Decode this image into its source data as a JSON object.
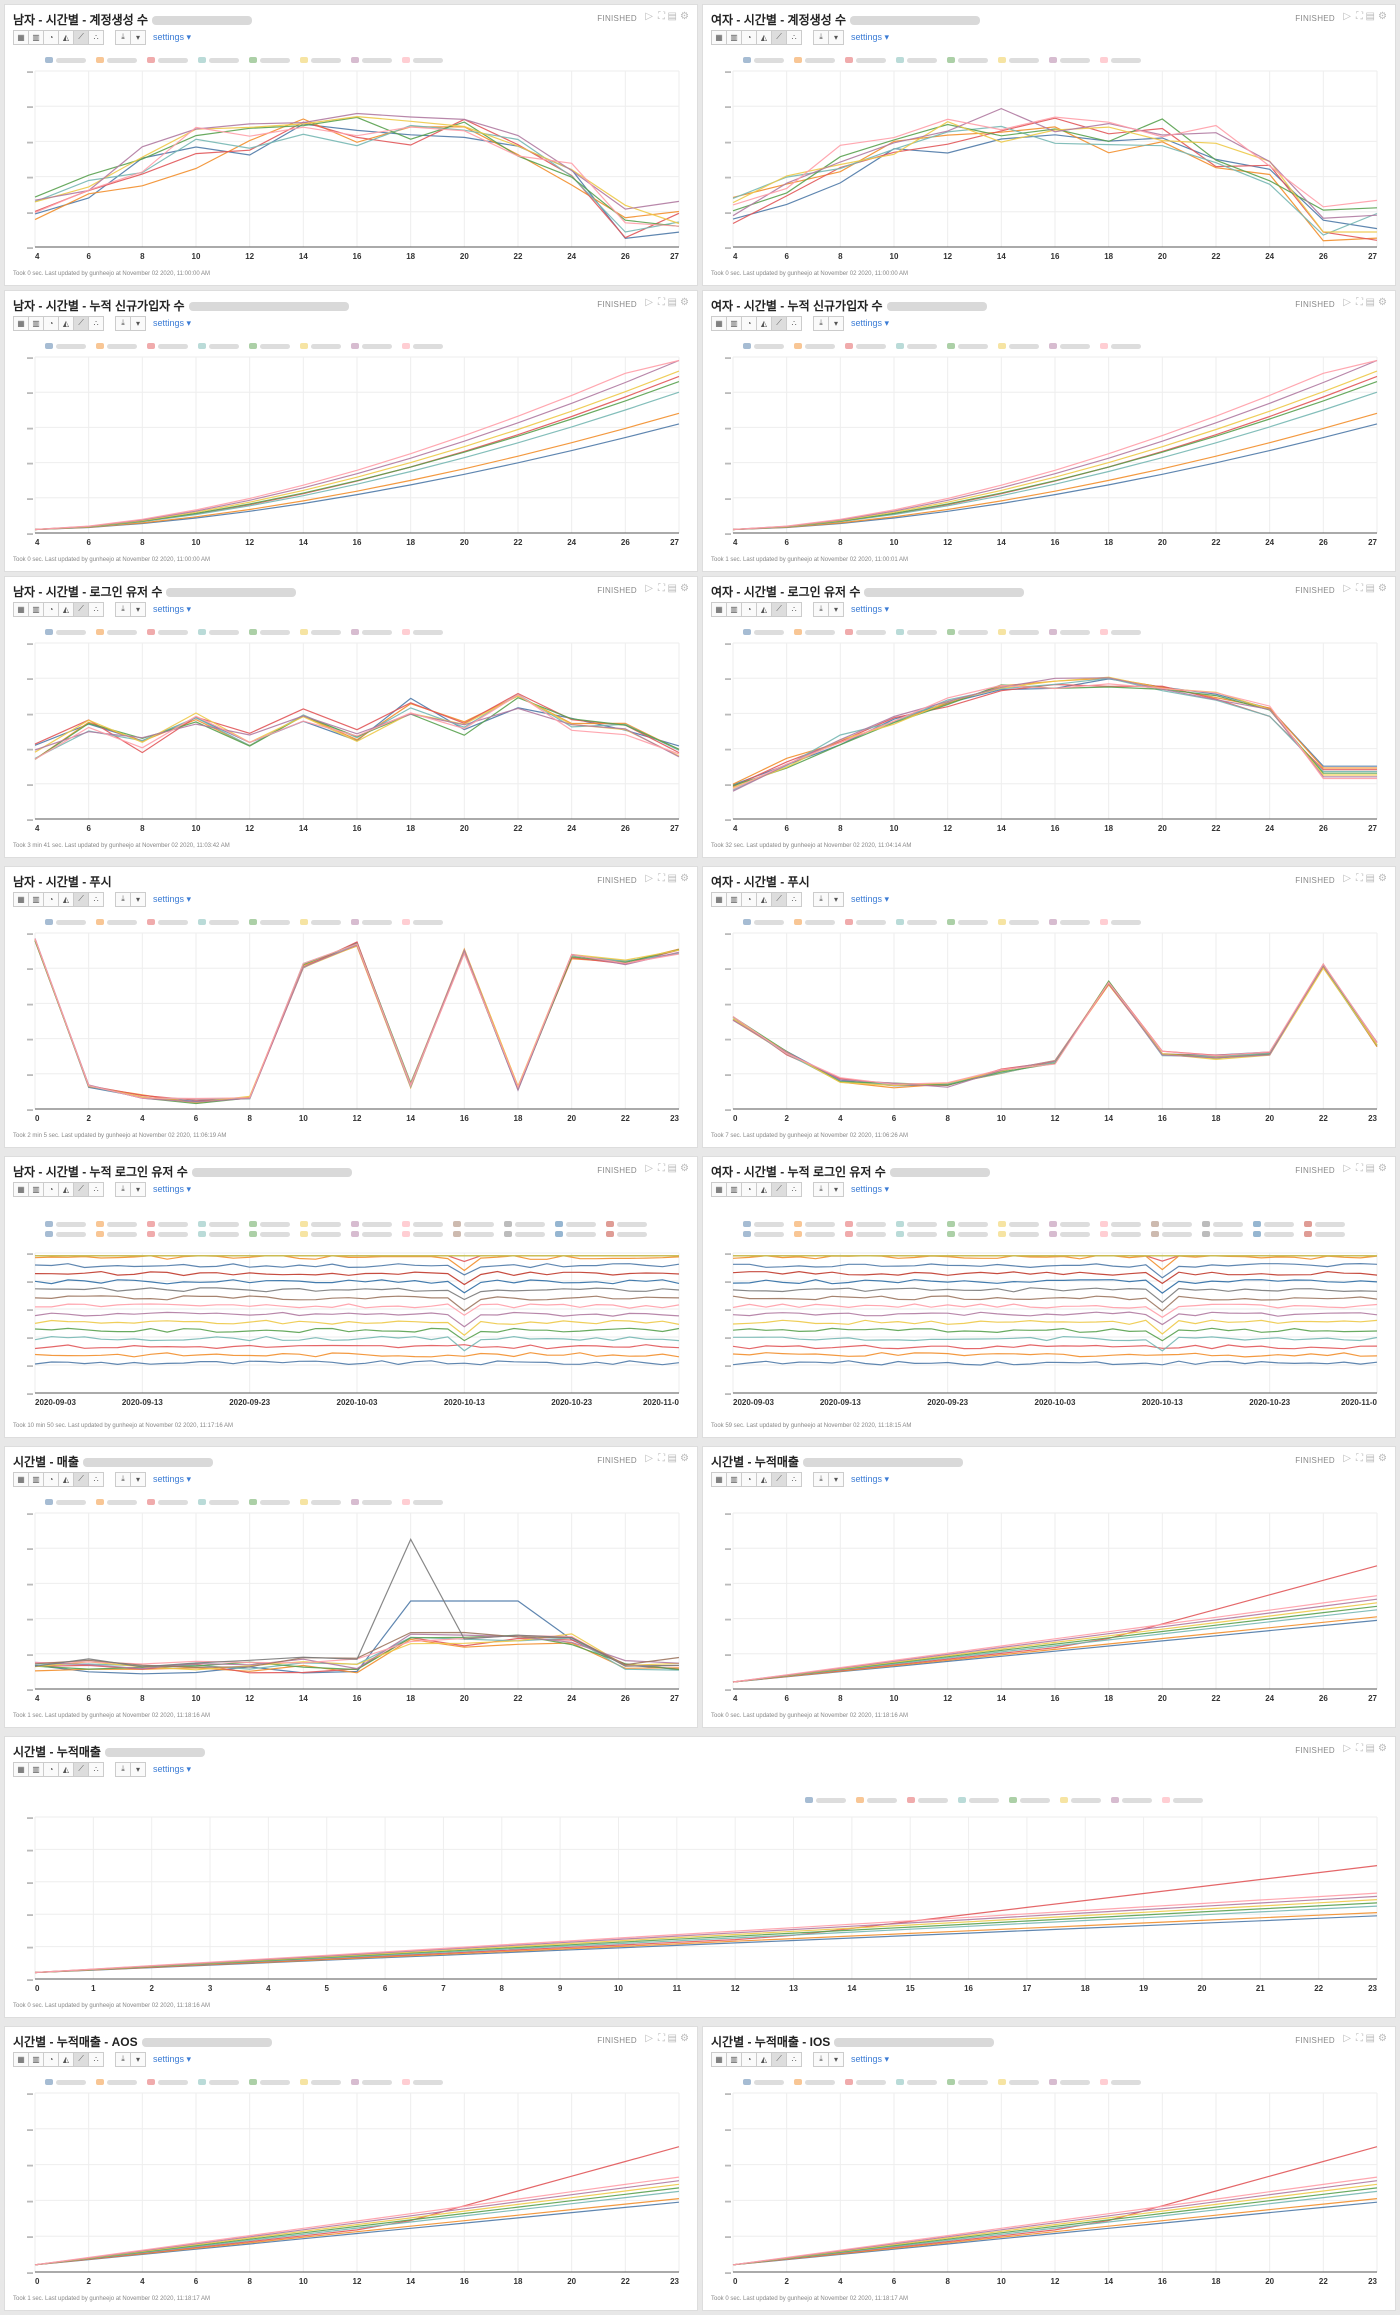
{
  "colors": [
    "#4e79a7",
    "#f28e2b",
    "#e15759",
    "#76b7b2",
    "#59a14f",
    "#edc948",
    "#b07aa1",
    "#ff9da7",
    "#9c755f",
    "#7a7a7a",
    "#2e6da4",
    "#c0392b"
  ],
  "paragraphs": [
    {
      "title": "남자 - 시간별 - 계정생성 수",
      "status": "FINISHED",
      "footer": "Took 0 sec. Last updated by gunheejo at November 02 2020, 11:00:00 AM",
      "settings": "settings",
      "chart_data": {
        "type": "line",
        "x": [
          4,
          6,
          8,
          10,
          12,
          14,
          16,
          18,
          20,
          22,
          24,
          26,
          27
        ],
        "xticks": [
          "4",
          "6",
          "8",
          "10",
          "12",
          "14",
          "16",
          "18",
          "20",
          "22",
          "24",
          "26",
          "27"
        ],
        "ylim": [
          0,
          100
        ],
        "pattern": "gen",
        "seed": 1
      }
    },
    {
      "title": "여자 - 시간별 - 계정생성 수",
      "status": "FINISHED",
      "footer": "Took 0 sec. Last updated by gunheejo at November 02 2020, 11:00:00 AM",
      "settings": "settings",
      "chart_data": {
        "type": "line",
        "x": [
          4,
          6,
          8,
          10,
          12,
          14,
          16,
          18,
          20,
          22,
          24,
          26,
          27
        ],
        "xticks": [
          "4",
          "6",
          "8",
          "10",
          "12",
          "14",
          "16",
          "18",
          "20",
          "22",
          "24",
          "26",
          "27"
        ],
        "ylim": [
          0,
          100
        ],
        "pattern": "gen",
        "seed": 2
      }
    },
    {
      "title": "남자 - 시간별 - 누적 신규가입자 수",
      "status": "FINISHED",
      "footer": "Took 0 sec. Last updated by gunheejo at November 02 2020, 11:00:00 AM",
      "settings": "settings",
      "chart_data": {
        "type": "line",
        "x": [
          4,
          6,
          8,
          10,
          12,
          14,
          16,
          18,
          20,
          22,
          24,
          26,
          27
        ],
        "xticks": [
          "4",
          "6",
          "8",
          "10",
          "12",
          "14",
          "16",
          "18",
          "20",
          "22",
          "24",
          "26",
          "27"
        ],
        "ylim": [
          0,
          100
        ],
        "pattern": "cum",
        "seed": 3
      }
    },
    {
      "title": "여자 - 시간별 - 누적 신규가입자 수",
      "status": "FINISHED",
      "footer": "Took 1 sec. Last updated by gunheejo at November 02 2020, 11:00:01 AM",
      "settings": "settings",
      "chart_data": {
        "type": "line",
        "x": [
          4,
          6,
          8,
          10,
          12,
          14,
          16,
          18,
          20,
          22,
          24,
          26,
          27
        ],
        "xticks": [
          "4",
          "6",
          "8",
          "10",
          "12",
          "14",
          "16",
          "18",
          "20",
          "22",
          "24",
          "26",
          "27"
        ],
        "ylim": [
          0,
          100
        ],
        "pattern": "cum",
        "seed": 4
      }
    },
    {
      "title": "남자 - 시간별 - 로그인 유저 수",
      "status": "FINISHED",
      "footer": "Took 3 min 41 sec. Last updated by gunheejo at November 02 2020, 11:03:42 AM",
      "settings": "settings",
      "chart_data": {
        "type": "line",
        "x": [
          4,
          6,
          8,
          10,
          12,
          14,
          16,
          18,
          20,
          22,
          24,
          26,
          27
        ],
        "xticks": [
          "4",
          "6",
          "8",
          "10",
          "12",
          "14",
          "16",
          "18",
          "20",
          "22",
          "24",
          "26",
          "27"
        ],
        "ylim": [
          0,
          100
        ],
        "pattern": "zig",
        "seed": 5
      }
    },
    {
      "title": "여자 - 시간별 - 로그인 유저 수",
      "status": "FINISHED",
      "footer": "Took 32 sec. Last updated by gunheejo at November 02 2020, 11:04:14 AM",
      "settings": "settings",
      "chart_data": {
        "type": "line",
        "x": [
          4,
          6,
          8,
          10,
          12,
          14,
          16,
          18,
          20,
          22,
          24,
          26,
          27
        ],
        "xticks": [
          "4",
          "6",
          "8",
          "10",
          "12",
          "14",
          "16",
          "18",
          "20",
          "22",
          "24",
          "26",
          "27"
        ],
        "ylim": [
          0,
          100
        ],
        "pattern": "hump",
        "seed": 6
      }
    },
    {
      "title": "남자 - 시간별 - 푸시",
      "status": "FINISHED",
      "footer": "Took 2 min 5 sec. Last updated by gunheejo at November 02 2020, 11:06:19 AM",
      "settings": "settings",
      "chart_data": {
        "type": "line",
        "x": [
          0,
          2,
          4,
          6,
          8,
          10,
          12,
          14,
          16,
          18,
          20,
          22,
          23
        ],
        "xticks": [
          "0",
          "2",
          "4",
          "6",
          "8",
          "10",
          "12",
          "14",
          "16",
          "18",
          "20",
          "22",
          "23"
        ],
        "ylim": [
          0,
          100
        ],
        "pattern": "push",
        "seed": 7
      }
    },
    {
      "title": "여자 - 시간별 - 푸시",
      "status": "FINISHED",
      "footer": "Took 7 sec. Last updated by gunheejo at November 02 2020, 11:06:26 AM",
      "settings": "settings",
      "chart_data": {
        "type": "line",
        "x": [
          0,
          2,
          4,
          6,
          8,
          10,
          12,
          14,
          16,
          18,
          20,
          22,
          23
        ],
        "xticks": [
          "0",
          "2",
          "4",
          "6",
          "8",
          "10",
          "12",
          "14",
          "16",
          "18",
          "20",
          "22",
          "23"
        ],
        "ylim": [
          0,
          100
        ],
        "pattern": "push2",
        "seed": 8
      }
    },
    {
      "title": "남자 - 시간별 - 누적 로그인 유저 수",
      "status": "FINISHED",
      "footer": "Took 10 min 50 sec. Last updated by gunheejo at November 02 2020, 11:17:16 AM",
      "settings": "settings",
      "chart_data": {
        "type": "line",
        "xticks": [
          "2020-09-03",
          "2020-09-13",
          "2020-09-23",
          "2020-10-03",
          "2020-10-13",
          "2020-10-23",
          "2020-11-0"
        ],
        "ylim": [
          0,
          100
        ],
        "pattern": "band",
        "seed": 9
      }
    },
    {
      "title": "여자 - 시간별 - 누적 로그인 유저 수",
      "status": "FINISHED",
      "footer": "Took 59 sec. Last updated by gunheejo at November 02 2020, 11:18:15 AM",
      "settings": "settings",
      "chart_data": {
        "type": "line",
        "xticks": [
          "2020-09-03",
          "2020-09-13",
          "2020-09-23",
          "2020-10-03",
          "2020-10-13",
          "2020-10-23",
          "2020-11-0"
        ],
        "ylim": [
          0,
          100
        ],
        "pattern": "band",
        "seed": 10
      }
    },
    {
      "title": "시간별 - 매출",
      "status": "FINISHED",
      "footer": "Took 1 sec. Last updated by gunheejo at November 02 2020, 11:18:16 AM",
      "settings": "settings",
      "chart_data": {
        "type": "line",
        "x": [
          4,
          6,
          8,
          10,
          12,
          14,
          16,
          18,
          20,
          22,
          24,
          26,
          27
        ],
        "xticks": [
          "4",
          "6",
          "8",
          "10",
          "12",
          "14",
          "16",
          "18",
          "20",
          "22",
          "24",
          "26",
          "27"
        ],
        "ylim": [
          0,
          100
        ],
        "pattern": "sales",
        "seed": 11
      }
    },
    {
      "title": "시간별 - 누적매출",
      "status": "FINISHED",
      "footer": "Took 0 sec. Last updated by gunheejo at November 02 2020, 11:18:16 AM",
      "settings": "settings",
      "chart_data": {
        "type": "line",
        "x": [
          4,
          6,
          8,
          10,
          12,
          14,
          16,
          18,
          20,
          22,
          24,
          26,
          27
        ],
        "xticks": [
          "4",
          "6",
          "8",
          "10",
          "12",
          "14",
          "16",
          "18",
          "20",
          "22",
          "24",
          "26",
          "27"
        ],
        "ylim": [
          0,
          100
        ],
        "pattern": "cumsales",
        "seed": 12
      }
    },
    {
      "title": "시간별 - 누적매출",
      "status": "FINISHED",
      "footer": "Took 0 sec. Last updated by gunheejo at November 02 2020, 11:18:16 AM",
      "settings": "settings",
      "chart_data": {
        "type": "line",
        "xticks": [
          "0",
          "1",
          "2",
          "3",
          "4",
          "5",
          "6",
          "7",
          "8",
          "9",
          "10",
          "11",
          "12",
          "13",
          "14",
          "15",
          "16",
          "17",
          "18",
          "19",
          "20",
          "21",
          "22",
          "23"
        ],
        "ylim": [
          0,
          100
        ],
        "pattern": "cumsales",
        "seed": 13
      }
    },
    {
      "title": "시간별 - 누적매출 - AOS",
      "status": "FINISHED",
      "footer": "Took 1 sec. Last updated by gunheejo at November 02 2020, 11:18:17 AM",
      "settings": "settings",
      "chart_data": {
        "type": "line",
        "x": [
          0,
          2,
          4,
          6,
          8,
          10,
          12,
          14,
          16,
          18,
          20,
          22,
          23
        ],
        "xticks": [
          "0",
          "2",
          "4",
          "6",
          "8",
          "10",
          "12",
          "14",
          "16",
          "18",
          "20",
          "22",
          "23"
        ],
        "ylim": [
          0,
          100
        ],
        "pattern": "cumsales",
        "seed": 14
      }
    },
    {
      "title": "시간별 - 누적매출 - IOS",
      "status": "FINISHED",
      "footer": "Took 0 sec. Last updated by gunheejo at November 02 2020, 11:18:17 AM",
      "settings": "settings",
      "chart_data": {
        "type": "line",
        "x": [
          0,
          2,
          4,
          6,
          8,
          10,
          12,
          14,
          16,
          18,
          20,
          22,
          23
        ],
        "xticks": [
          "0",
          "2",
          "4",
          "6",
          "8",
          "10",
          "12",
          "14",
          "16",
          "18",
          "20",
          "22",
          "23"
        ],
        "ylim": [
          0,
          100
        ],
        "pattern": "cumsales",
        "seed": 15
      }
    }
  ]
}
